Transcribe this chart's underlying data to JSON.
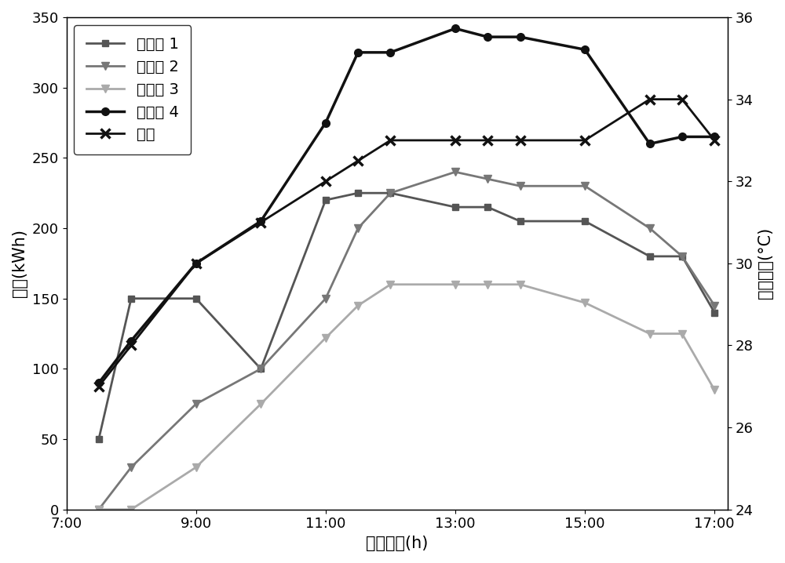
{
  "x_hours": [
    7.5,
    8.0,
    9.0,
    10.0,
    11.0,
    11.5,
    12.0,
    13.0,
    13.5,
    14.0,
    15.0,
    16.0,
    16.5,
    17.0
  ],
  "prosumer1": [
    50,
    150,
    150,
    100,
    220,
    225,
    225,
    215,
    215,
    205,
    205,
    180,
    180,
    140
  ],
  "prosumer2": [
    0,
    30,
    75,
    100,
    150,
    200,
    225,
    240,
    235,
    230,
    230,
    200,
    180,
    145
  ],
  "prosumer3": [
    0,
    0,
    30,
    75,
    122,
    145,
    160,
    160,
    160,
    160,
    147,
    125,
    125,
    85
  ],
  "prosumer4": [
    90,
    120,
    175,
    205,
    275,
    325,
    325,
    342,
    336,
    336,
    327,
    260,
    265,
    265
  ],
  "temperature": [
    27,
    28,
    30,
    31,
    32,
    32.5,
    33,
    33,
    33,
    33,
    33,
    34,
    34,
    33
  ],
  "ylim_left": [
    0,
    350
  ],
  "ylim_right": [
    24,
    36
  ],
  "yticks_left": [
    0,
    50,
    100,
    150,
    200,
    250,
    300,
    350
  ],
  "yticks_right": [
    24,
    26,
    28,
    30,
    32,
    34,
    36
  ],
  "ylabel_left": "功率(kWh)",
  "ylabel_right": "室外温度(°C)",
  "xlabel": "运行时段(h)",
  "legend_labels": [
    "产消者 1",
    "产消者 2",
    "产消者 3",
    "产消者 4",
    "温度"
  ],
  "color1": "#555555",
  "color2": "#777777",
  "color3": "#aaaaaa",
  "color4": "#111111",
  "color_temp": "#111111",
  "background": "#ffffff",
  "xlim": [
    7.0,
    17.2
  ],
  "x_tick_positions": [
    7.0,
    9.0,
    11.0,
    13.0,
    15.0,
    17.0
  ],
  "x_tick_labels": [
    "7:00",
    "9:00",
    "11:00",
    "13:00",
    "15:00",
    "17:00"
  ]
}
